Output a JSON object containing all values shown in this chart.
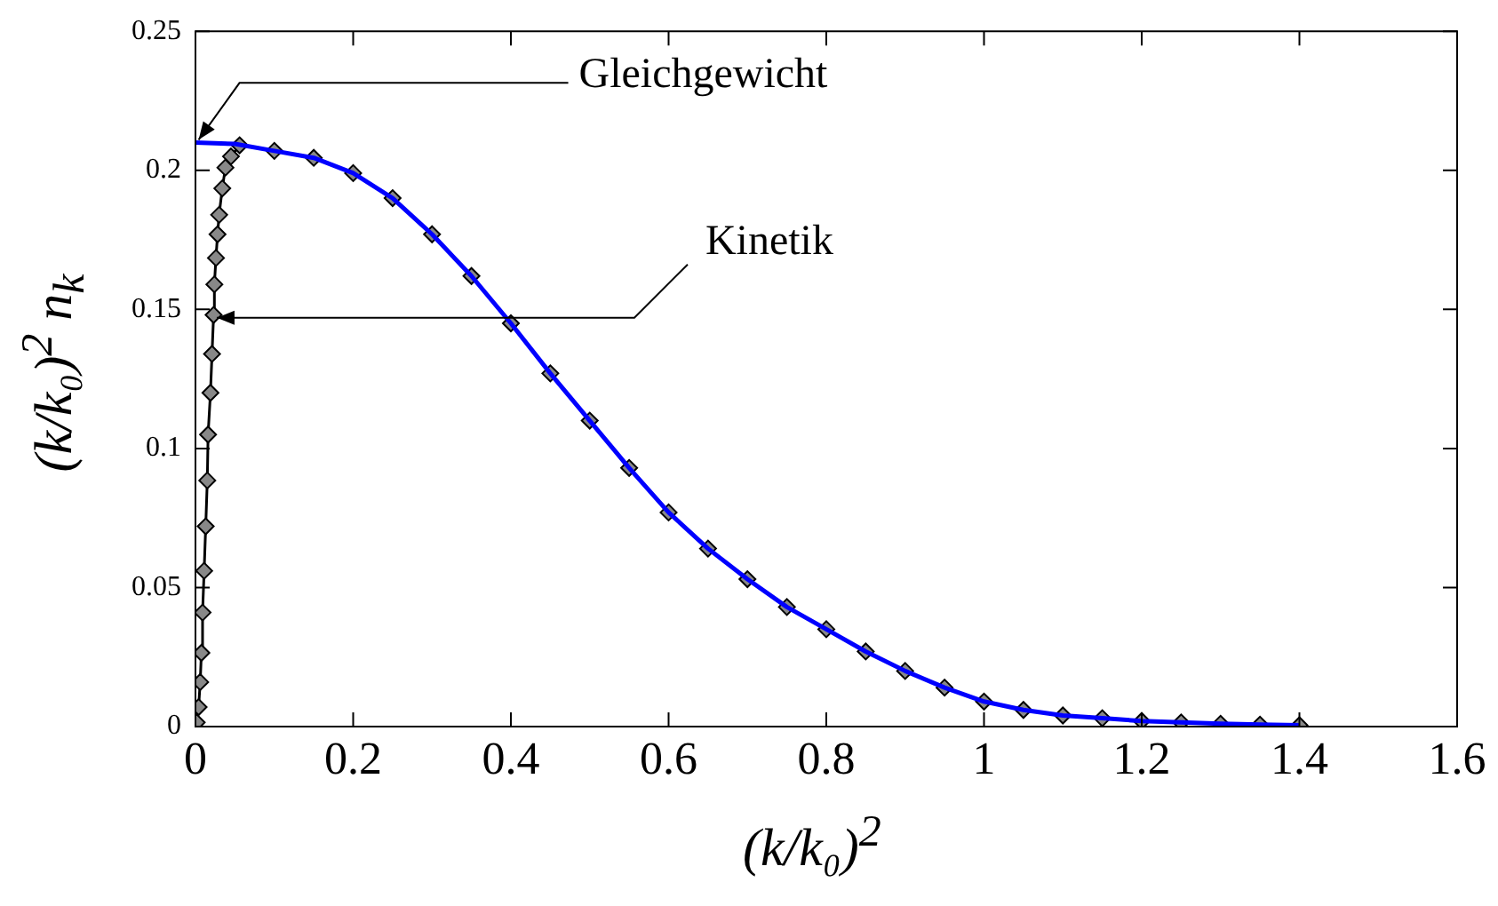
{
  "chart_data": {
    "type": "line",
    "xlabel": "(k/k₀)$^{2}$",
    "ylabel": "(k/k₀)$^{2}$ n$_{k}$",
    "xlim": [
      0,
      1.6
    ],
    "xticks": [
      0,
      0.2,
      0.4,
      0.6,
      0.8,
      1,
      1.2,
      1.4,
      1.6
    ],
    "ylim": [
      0,
      0.25
    ],
    "yticks": [
      0,
      0.05,
      0.1,
      0.15,
      0.2,
      0.25
    ],
    "grid": false,
    "legend": false,
    "annotations": [
      {
        "text": "Gleichgewicht",
        "x": 0.004,
        "y": 0.211
      },
      {
        "text": "Kinetik",
        "x": 0.027,
        "y": 0.147
      }
    ],
    "series": [
      {
        "color": "#000000",
        "marker": "diamond",
        "x": [
          0.0016,
          0.004,
          0.006,
          0.0075,
          0.009,
          0.011,
          0.013,
          0.015,
          0.016,
          0.019,
          0.021,
          0.023,
          0.024,
          0.026,
          0.028,
          0.03,
          0.034,
          0.038,
          0.045,
          0.056,
          0.1,
          0.15,
          0.2,
          0.25,
          0.3,
          0.35,
          0.4,
          0.45,
          0.5,
          0.55,
          0.6,
          0.65,
          0.7,
          0.75,
          0.8,
          0.85,
          0.9,
          0.95,
          1,
          1.05,
          1.1,
          1.15,
          1.2,
          1.25,
          1.3,
          1.35,
          1.4
        ],
        "values": [
          0.0015,
          0.007,
          0.016,
          0.0265,
          0.041,
          0.056,
          0.072,
          0.0885,
          0.105,
          0.12,
          0.134,
          0.148,
          0.159,
          0.1685,
          0.177,
          0.184,
          0.1935,
          0.201,
          0.205,
          0.209,
          0.207,
          0.2045,
          0.199,
          0.19,
          0.177,
          0.162,
          0.145,
          0.127,
          0.11,
          0.093,
          0.077,
          0.064,
          0.053,
          0.043,
          0.035,
          0.027,
          0.02,
          0.014,
          0.009,
          0.006,
          0.004,
          0.003,
          0.002,
          0.0015,
          0.001,
          0.0007,
          0.0005
        ]
      },
      {
        "color": "#0000ff",
        "marker": "none",
        "x": [
          0,
          0.05,
          0.1,
          0.15,
          0.2,
          0.25,
          0.3,
          0.35,
          0.4,
          0.45,
          0.5,
          0.55,
          0.6,
          0.65,
          0.7,
          0.75,
          0.8,
          0.85,
          0.9,
          0.95,
          1,
          1.05,
          1.1,
          1.15,
          1.2,
          1.25,
          1.3,
          1.35,
          1.4
        ],
        "values": [
          0.21,
          0.2095,
          0.207,
          0.2045,
          0.199,
          0.19,
          0.177,
          0.162,
          0.145,
          0.127,
          0.11,
          0.093,
          0.077,
          0.064,
          0.053,
          0.043,
          0.035,
          0.027,
          0.02,
          0.014,
          0.009,
          0.006,
          0.004,
          0.003,
          0.002,
          0.0015,
          0.001,
          0.0007,
          0.0005
        ]
      }
    ]
  }
}
